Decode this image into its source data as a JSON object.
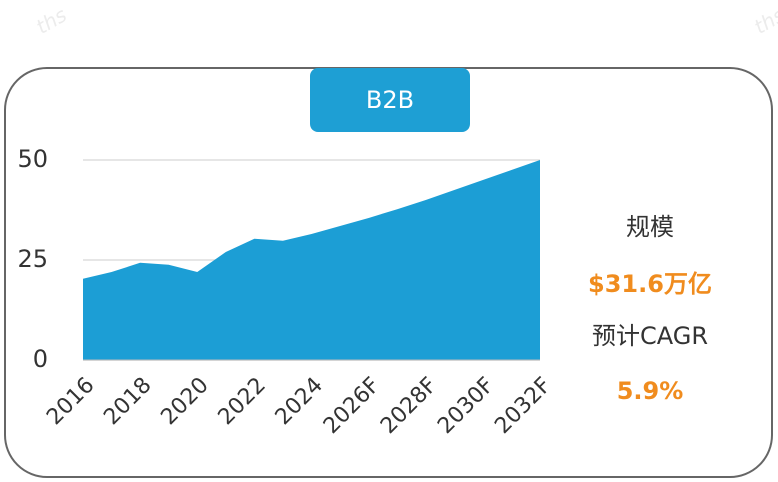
{
  "watermark": "ths",
  "chart_data": {
    "type": "area",
    "title": "B2B",
    "categories": [
      "2016",
      null,
      "2018",
      null,
      "2020",
      null,
      "2022",
      null,
      "2024",
      null,
      "2026F",
      null,
      "2028F",
      null,
      "2030F",
      null,
      "2032F"
    ],
    "values": [
      20.3,
      22,
      24.3,
      23.8,
      22,
      27,
      30.3,
      29.8,
      31.5,
      33.5,
      35.5,
      37.7,
      40,
      42.5,
      45,
      47.5,
      50
    ],
    "color": "#1c9ed5",
    "ylim": [
      0,
      50
    ],
    "yticks": [
      0,
      25,
      50
    ],
    "grid": true,
    "annotations": [
      "规模",
      "$31.6万亿",
      "预计CAGR",
      "5.9%"
    ]
  }
}
